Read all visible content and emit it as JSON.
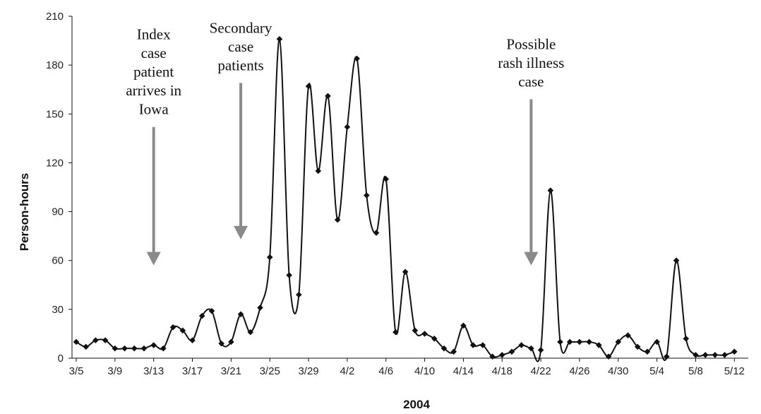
{
  "chart_data": {
    "type": "line",
    "xlabel": "2004",
    "ylabel": "Person-hours",
    "ylim": [
      0,
      210
    ],
    "yticks": [
      0,
      30,
      60,
      90,
      120,
      150,
      180,
      210
    ],
    "xlim": [
      "3/5",
      "5/13"
    ],
    "xticks": [
      "3/5",
      "3/9",
      "3/13",
      "3/17",
      "3/21",
      "3/25",
      "3/29",
      "4/2",
      "4/6",
      "4/10",
      "4/14",
      "4/18",
      "4/22",
      "4/26",
      "4/30",
      "5/4",
      "5/8",
      "5/12"
    ],
    "grid": false,
    "legend": "none",
    "colors": {
      "series": "#111111",
      "arrow": "#8a8a8a"
    },
    "series": [
      {
        "x": [
          "3/5",
          "3/6",
          "3/7",
          "3/8",
          "3/9",
          "3/10",
          "3/11",
          "3/12",
          "3/13",
          "3/14",
          "3/15",
          "3/16",
          "3/17",
          "3/18",
          "3/19",
          "3/20",
          "3/21",
          "3/22",
          "3/23",
          "3/24",
          "3/25",
          "3/26",
          "3/27",
          "3/28",
          "3/29",
          "3/30",
          "3/31",
          "4/1",
          "4/2",
          "4/3",
          "4/4",
          "4/5",
          "4/6",
          "4/7",
          "4/8",
          "4/9",
          "4/10",
          "4/11",
          "4/12",
          "4/13",
          "4/14",
          "4/15",
          "4/16",
          "4/17",
          "4/18",
          "4/19",
          "4/20",
          "4/21",
          "4/22",
          "4/23",
          "4/24",
          "4/25",
          "4/26",
          "4/27",
          "4/28",
          "4/29",
          "4/30",
          "5/1",
          "5/2",
          "5/3",
          "5/4",
          "5/5",
          "5/6",
          "5/7",
          "5/8",
          "5/9",
          "5/10",
          "5/11",
          "5/12"
        ],
        "values": [
          10,
          7,
          11,
          11,
          6,
          6,
          6,
          6,
          8,
          6,
          19,
          17,
          11,
          26,
          29,
          9,
          10,
          27,
          16,
          31,
          62,
          196,
          51,
          39,
          167,
          115,
          161,
          85,
          142,
          184,
          100,
          77,
          110,
          16,
          53,
          17,
          15,
          12,
          6,
          4,
          20,
          8,
          8,
          1,
          2,
          4,
          8,
          6,
          5,
          103,
          10,
          10,
          10,
          10,
          8,
          1,
          10,
          14,
          7,
          4,
          10,
          1,
          60,
          12,
          2,
          2,
          2,
          2,
          4
        ]
      }
    ],
    "annotations": [
      {
        "lines": [
          "Index",
          "case",
          "patient",
          "arrives in",
          "Iowa"
        ],
        "arrow_x": "3/13",
        "arrow_from": 142,
        "arrow_to": 57
      },
      {
        "lines": [
          "Secondary",
          "case",
          "patients"
        ],
        "arrow_x": "3/22",
        "arrow_from": 169,
        "arrow_to": 73
      },
      {
        "lines": [
          "Possible",
          "rash illness",
          "case"
        ],
        "arrow_x": "4/21",
        "arrow_from": 159,
        "arrow_to": 57
      }
    ]
  }
}
